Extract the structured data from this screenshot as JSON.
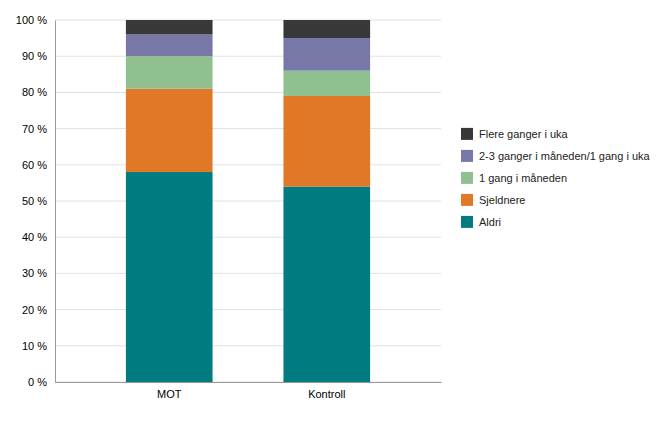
{
  "chart_data": {
    "type": "bar",
    "stacked": true,
    "categories": [
      "MOT",
      "Kontroll"
    ],
    "series": [
      {
        "name": "Aldri",
        "values": [
          58,
          54
        ],
        "color": "#007B80"
      },
      {
        "name": "Sjeldnere",
        "values": [
          23,
          25
        ],
        "color": "#E07828"
      },
      {
        "name": "1 gang i måneden",
        "values": [
          9,
          7
        ],
        "color": "#90C090"
      },
      {
        "name": "2-3 ganger i måneden/1 gang i uka",
        "values": [
          6,
          9
        ],
        "color": "#7878A8"
      },
      {
        "name": "Flere ganger i uka",
        "values": [
          4,
          5
        ],
        "color": "#383838"
      }
    ],
    "ylim": [
      0,
      100
    ],
    "yticks": [
      {
        "value": 0,
        "label": "0 %"
      },
      {
        "value": 10,
        "label": "10 %"
      },
      {
        "value": 20,
        "label": "20 %"
      },
      {
        "value": 30,
        "label": "30 %"
      },
      {
        "value": 40,
        "label": "40 %"
      },
      {
        "value": 50,
        "label": "50 %"
      },
      {
        "value": 60,
        "label": "60 %"
      },
      {
        "value": 70,
        "label": "70 %"
      },
      {
        "value": 80,
        "label": "80 %"
      },
      {
        "value": 90,
        "label": "90 %"
      },
      {
        "value": 100,
        "label": "100 %"
      }
    ],
    "grid": true,
    "legend": "right"
  }
}
